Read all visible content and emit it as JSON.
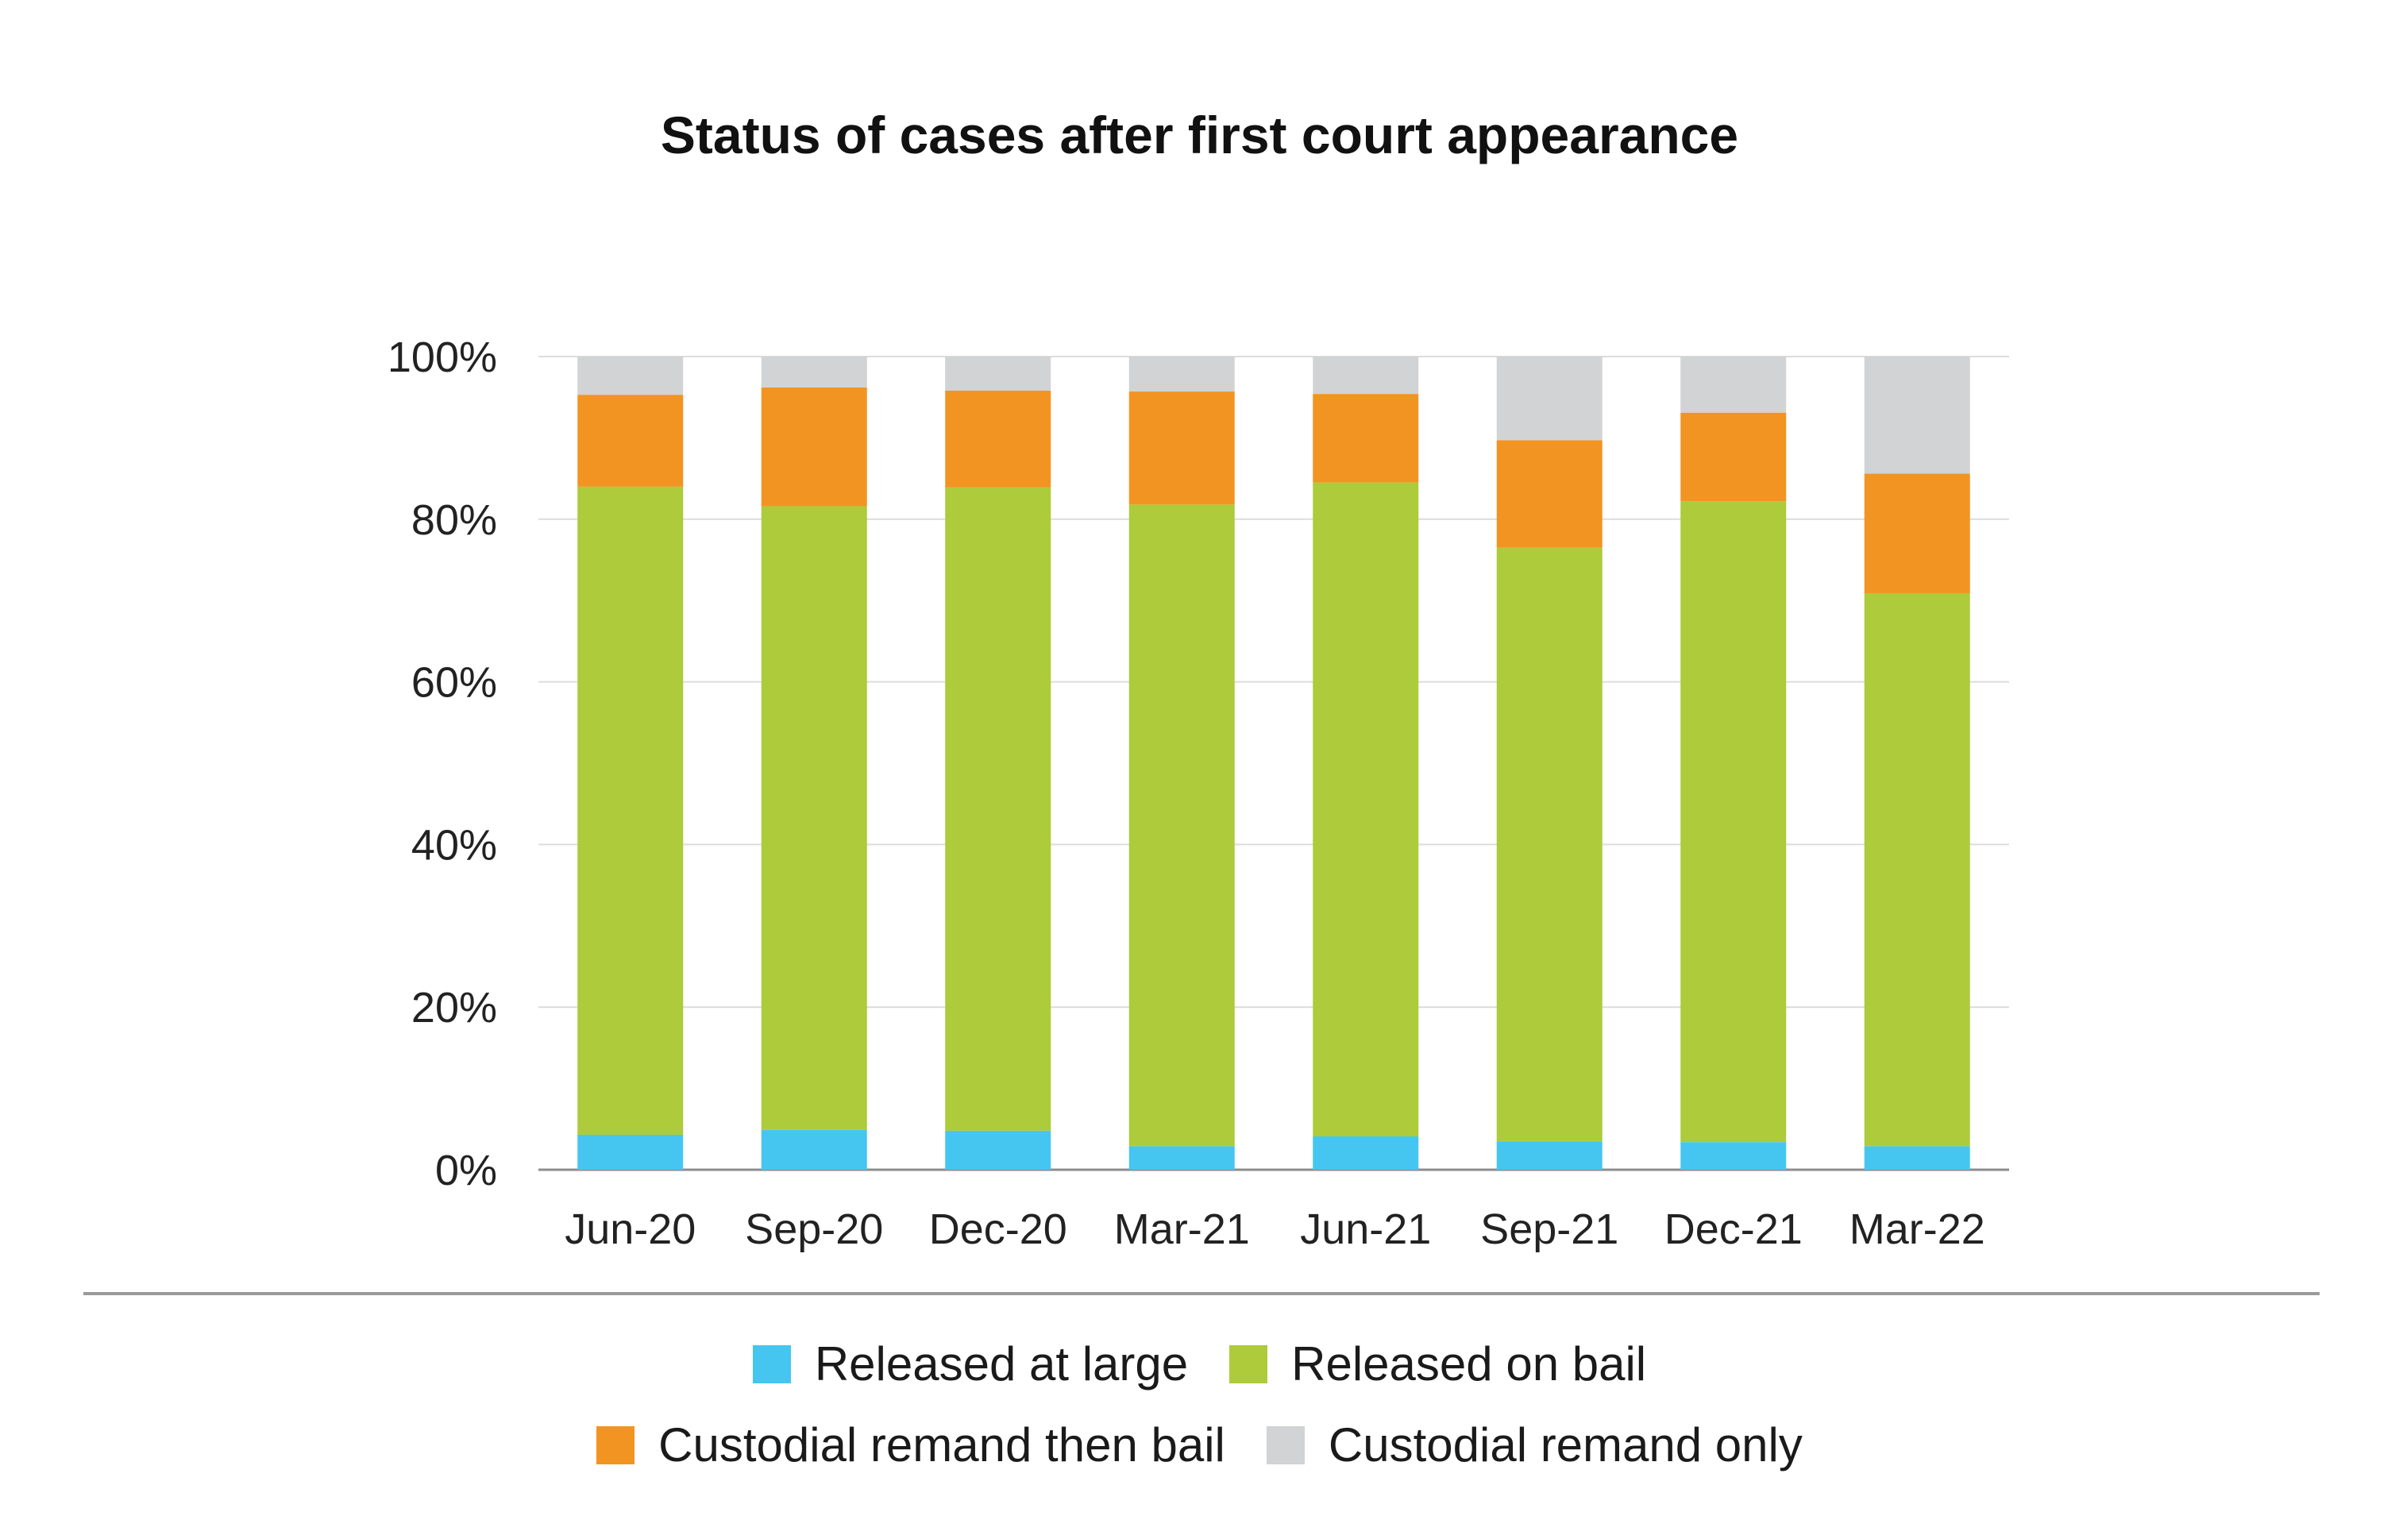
{
  "chart_data": {
    "type": "bar",
    "stacked": true,
    "title": "Status of cases after first court appearance",
    "xlabel": "",
    "ylabel": "",
    "ylim": [
      0,
      100
    ],
    "yticks": [
      "0%",
      "20%",
      "40%",
      "60%",
      "80%",
      "100%"
    ],
    "categories": [
      "Jun-20",
      "Sep-20",
      "Dec-20",
      "Mar-21",
      "Jun-21",
      "Sep-21",
      "Dec-21",
      "Mar-22"
    ],
    "series": [
      {
        "name": "Released at large",
        "color": "#45c6f0",
        "values": [
          4.3,
          4.9,
          4.8,
          2.9,
          4.1,
          3.5,
          3.4,
          2.9
        ]
      },
      {
        "name": "Released on bail",
        "color": "#adcb3a",
        "values": [
          79.7,
          76.7,
          79.1,
          78.9,
          80.4,
          73.0,
          78.8,
          68.0
        ]
      },
      {
        "name": "Custodial remand then bail",
        "color": "#f29422",
        "values": [
          11.3,
          14.6,
          11.9,
          13.9,
          10.9,
          13.2,
          10.9,
          14.7
        ]
      },
      {
        "name": "Custodial remand only",
        "color": "#d1d3d4",
        "values": [
          4.7,
          3.8,
          4.2,
          4.3,
          4.6,
          10.3,
          6.9,
          14.4
        ]
      }
    ],
    "grid": true,
    "legend_position": "bottom"
  },
  "legend": {
    "rows": [
      [
        {
          "label": "Released at large",
          "color": "#45c6f0"
        },
        {
          "label": "Released on bail",
          "color": "#adcb3a"
        }
      ],
      [
        {
          "label": "Custodial remand then bail",
          "color": "#f29422"
        },
        {
          "label": "Custodial remand only",
          "color": "#d1d3d4"
        }
      ]
    ]
  }
}
